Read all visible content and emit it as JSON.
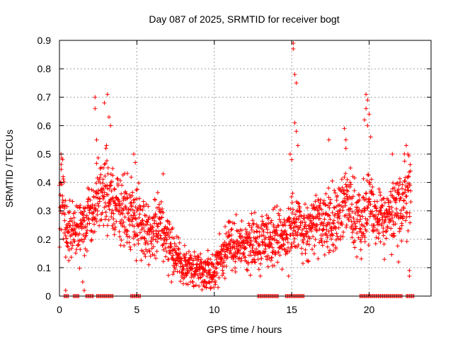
{
  "chart_data": {
    "type": "scatter",
    "title": "Day 087 of 2025, SRMTID for receiver bogt",
    "xlabel": "GPS time / hours",
    "ylabel": "SRMTID / TECUs",
    "xlim": [
      0,
      24
    ],
    "ylim": [
      0,
      0.9
    ],
    "xticks": [
      0,
      5,
      10,
      15,
      20
    ],
    "yticks": [
      0,
      0.1,
      0.2,
      0.3,
      0.4,
      0.5,
      0.6,
      0.7,
      0.8,
      0.9
    ],
    "grid": true,
    "marker": "+",
    "color": "#ff0000",
    "series_name": "SRMTID",
    "trend": [
      [
        0.0,
        0.38
      ],
      [
        0.5,
        0.25
      ],
      [
        1.0,
        0.22
      ],
      [
        1.5,
        0.24
      ],
      [
        2.0,
        0.28
      ],
      [
        2.5,
        0.34
      ],
      [
        3.0,
        0.36
      ],
      [
        3.5,
        0.33
      ],
      [
        4.0,
        0.3
      ],
      [
        4.5,
        0.29
      ],
      [
        5.0,
        0.27
      ],
      [
        5.5,
        0.24
      ],
      [
        6.0,
        0.23
      ],
      [
        6.5,
        0.25
      ],
      [
        7.0,
        0.2
      ],
      [
        7.5,
        0.14
      ],
      [
        8.0,
        0.11
      ],
      [
        8.5,
        0.1
      ],
      [
        9.0,
        0.1
      ],
      [
        9.5,
        0.085
      ],
      [
        10.0,
        0.08
      ],
      [
        10.5,
        0.15
      ],
      [
        11.0,
        0.18
      ],
      [
        11.5,
        0.18
      ],
      [
        12.0,
        0.18
      ],
      [
        12.5,
        0.19
      ],
      [
        13.0,
        0.2
      ],
      [
        13.5,
        0.2
      ],
      [
        14.0,
        0.2
      ],
      [
        14.5,
        0.22
      ],
      [
        15.0,
        0.25
      ],
      [
        15.5,
        0.24
      ],
      [
        16.0,
        0.23
      ],
      [
        16.5,
        0.26
      ],
      [
        17.0,
        0.25
      ],
      [
        17.5,
        0.27
      ],
      [
        18.0,
        0.25
      ],
      [
        18.5,
        0.36
      ],
      [
        19.0,
        0.28
      ],
      [
        19.5,
        0.27
      ],
      [
        20.0,
        0.33
      ],
      [
        20.5,
        0.26
      ],
      [
        21.0,
        0.27
      ],
      [
        21.5,
        0.28
      ],
      [
        22.0,
        0.32
      ],
      [
        22.5,
        0.36
      ],
      [
        22.7,
        0.4
      ]
    ],
    "peaks": [
      [
        0.1,
        0.5
      ],
      [
        0.2,
        0.48
      ],
      [
        2.3,
        0.7
      ],
      [
        2.3,
        0.66
      ],
      [
        2.4,
        0.55
      ],
      [
        2.9,
        0.68
      ],
      [
        3.1,
        0.71
      ],
      [
        3.2,
        0.63
      ],
      [
        3.3,
        0.6
      ],
      [
        3.0,
        0.52
      ],
      [
        4.8,
        0.5
      ],
      [
        4.9,
        0.47
      ],
      [
        6.7,
        0.43
      ],
      [
        15.1,
        0.89
      ],
      [
        15.1,
        0.87
      ],
      [
        15.2,
        0.78
      ],
      [
        15.3,
        0.75
      ],
      [
        15.2,
        0.61
      ],
      [
        15.3,
        0.58
      ],
      [
        15.4,
        0.53
      ],
      [
        14.9,
        0.5
      ],
      [
        15.0,
        0.48
      ],
      [
        17.4,
        0.55
      ],
      [
        18.4,
        0.59
      ],
      [
        18.5,
        0.55
      ],
      [
        18.5,
        0.52
      ],
      [
        19.8,
        0.71
      ],
      [
        19.9,
        0.69
      ],
      [
        19.8,
        0.66
      ],
      [
        20.0,
        0.64
      ],
      [
        19.7,
        0.62
      ],
      [
        19.9,
        0.6
      ],
      [
        20.1,
        0.56
      ],
      [
        21.5,
        0.5
      ],
      [
        22.4,
        0.53
      ],
      [
        22.5,
        0.5
      ],
      [
        0.4,
        0.02
      ],
      [
        1.6,
        0.02
      ],
      [
        1.5,
        0.05
      ],
      [
        14.8,
        0.07
      ],
      [
        22.6,
        0.07
      ],
      [
        22.6,
        0.09
      ],
      [
        21.9,
        0.12
      ]
    ],
    "zero_runs": [
      [
        0.3,
        0.6
      ],
      [
        0.9,
        1.3
      ],
      [
        1.7,
        2.2
      ],
      [
        2.4,
        3.5
      ],
      [
        4.6,
        5.3
      ],
      [
        12.8,
        14.2
      ],
      [
        14.6,
        15.8
      ],
      [
        19.4,
        22.2
      ],
      [
        22.4,
        22.9
      ]
    ]
  }
}
